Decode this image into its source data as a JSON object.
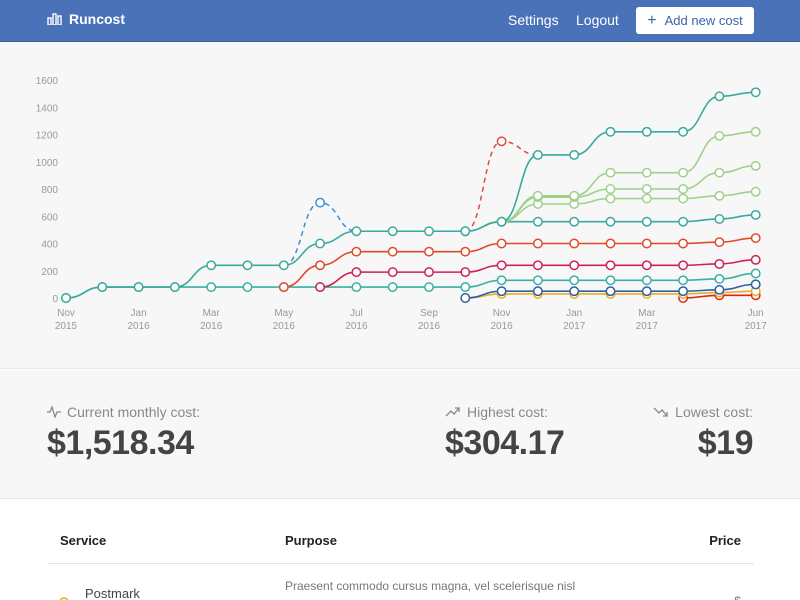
{
  "header": {
    "brand": "Runcost",
    "settings": "Settings",
    "logout": "Logout",
    "add_button": "Add new cost",
    "colors": {
      "bar": "#4a72b8"
    }
  },
  "chart_data": {
    "type": "line",
    "y_ticks": [
      "1600",
      "1400",
      "1200",
      "1000",
      "800",
      "600",
      "400",
      "200",
      "0"
    ],
    "ylim": [
      0,
      1600
    ],
    "x_ticks": [
      [
        "Nov",
        "2015"
      ],
      [
        "Jan",
        "2016"
      ],
      [
        "Mar",
        "2016"
      ],
      [
        "May",
        "2016"
      ],
      [
        "Jul",
        "2016"
      ],
      [
        "Sep",
        "2016"
      ],
      [
        "Nov",
        "2016"
      ],
      [
        "Jan",
        "2017"
      ],
      [
        "Mar",
        "2017"
      ],
      [
        "Jun",
        "2017"
      ]
    ],
    "x_points": [
      "2015-11",
      "2015-12",
      "2016-01",
      "2016-02",
      "2016-03",
      "2016-04",
      "2016-05",
      "2016-06",
      "2016-07",
      "2016-08",
      "2016-09",
      "2016-10",
      "2016-11",
      "2016-12",
      "2017-01",
      "2017-02",
      "2017-03",
      "2017-04",
      "2017-05",
      "2017-06"
    ],
    "grid": false,
    "series": [
      {
        "color": "#3aaa9a",
        "start": 0,
        "values": [
          0,
          80,
          80,
          80,
          240,
          240,
          240,
          400,
          490,
          490,
          490,
          490,
          560,
          1050,
          1050,
          1220,
          1220,
          1220,
          1480,
          1510
        ]
      },
      {
        "color": "#9ed18a",
        "start": 12,
        "values": [
          560,
          750,
          750,
          920,
          920,
          920,
          1190,
          1220
        ]
      },
      {
        "color": "#9ed18a",
        "start": 12,
        "values": [
          560,
          740,
          740,
          800,
          800,
          800,
          920,
          970
        ]
      },
      {
        "color": "#9ed18a",
        "start": 12,
        "values": [
          560,
          690,
          690,
          730,
          730,
          730,
          750,
          780
        ]
      },
      {
        "color": "#3aaa9a",
        "start": 11,
        "values": [
          490,
          560,
          560,
          560,
          560,
          560,
          560,
          580,
          610
        ]
      },
      {
        "color": "#e04a2a",
        "start": 6,
        "values": [
          80,
          240,
          340,
          340,
          340,
          340,
          400,
          400,
          400,
          400,
          400,
          400,
          410,
          440
        ]
      },
      {
        "color": "#cc2256",
        "start": 7,
        "values": [
          80,
          190,
          190,
          190,
          190,
          240,
          240,
          240,
          240,
          240,
          240,
          250,
          280
        ]
      },
      {
        "color": "#3ab0a0",
        "start": 0,
        "values": [
          0,
          80,
          80,
          80,
          80,
          80,
          80,
          80,
          80,
          80,
          80,
          80,
          130,
          130,
          130,
          130,
          130,
          130,
          140,
          180
        ]
      },
      {
        "color": "#2e5fa8",
        "start": 11,
        "values": [
          0,
          50,
          50,
          50,
          50,
          50,
          50,
          60,
          100
        ]
      },
      {
        "color": "#e8b020",
        "start": 11,
        "values": [
          0,
          30,
          30,
          30,
          30,
          30,
          30,
          40,
          50
        ]
      },
      {
        "color": "#e0201a",
        "start": 17,
        "values": [
          0,
          20,
          20
        ]
      }
    ],
    "dashed": [
      {
        "color": "#3a8fd8",
        "points": [
          [
            6,
            240
          ],
          [
            7,
            700
          ],
          [
            8,
            490
          ]
        ]
      },
      {
        "color": "#e04a4a",
        "points": [
          [
            11,
            490
          ],
          [
            12,
            1150
          ],
          [
            13,
            1050
          ]
        ]
      }
    ]
  },
  "stats": {
    "current_label": "Current monthly cost:",
    "current_value": "$1,518.34",
    "highest_label": "Highest cost:",
    "highest_value": "$304.17",
    "lowest_label": "Lowest cost:",
    "lowest_value": "$19"
  },
  "table": {
    "headers": {
      "service": "Service",
      "purpose": "Purpose",
      "price": "Price"
    },
    "rows": [
      {
        "service": "Postmark",
        "purpose": "Praesent commodo cursus magna, vel scelerisque nisl",
        "price": "$"
      }
    ]
  }
}
